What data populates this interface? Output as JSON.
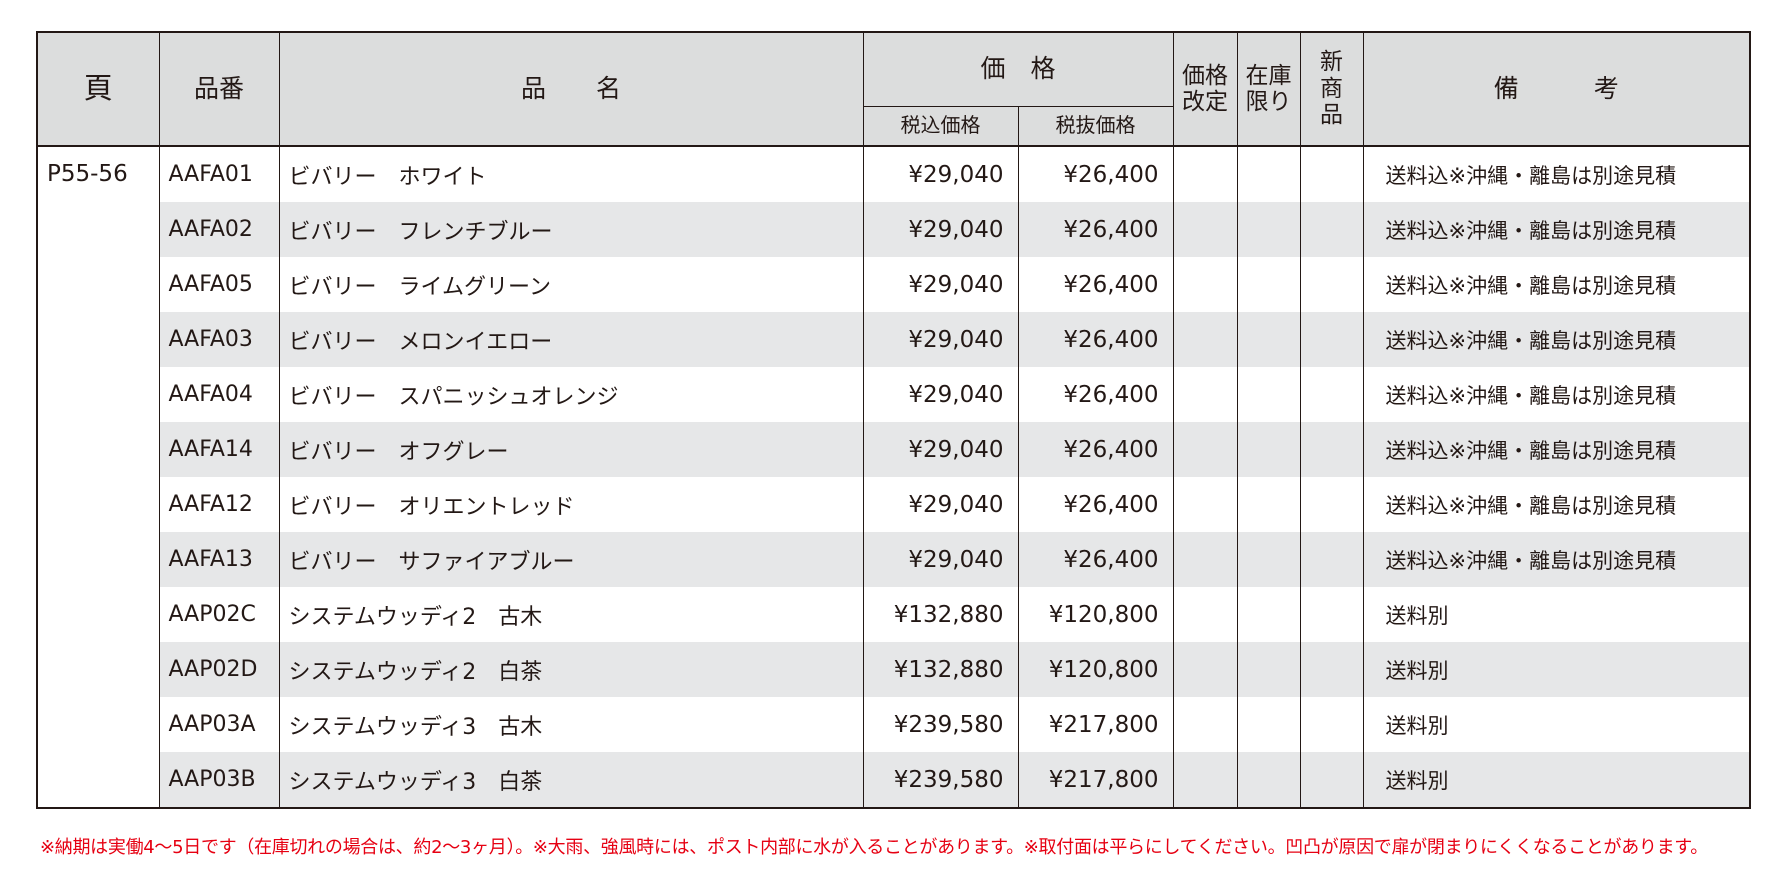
{
  "headers": {
    "page": "頁",
    "code": "品番",
    "name": "品　　名",
    "price": "価　格",
    "price_tax_in": "税込価格",
    "price_tax_out": "税抜価格",
    "revised": "価格改定",
    "revised_l1": "価格",
    "revised_l2": "改定",
    "stock_only": "在庫限り",
    "stock_l1": "在庫",
    "stock_l2": "限り",
    "new_product": "新商品",
    "new_l1": "新",
    "new_l2": "商",
    "new_l3": "品",
    "remarks": "備　　　考"
  },
  "page_ref": "P55-56",
  "rows": [
    {
      "code": "AAFA01",
      "name": "ビバリー　ホワイト",
      "price_in": "¥29,040",
      "price_out": "¥26,400",
      "note": "送料込※沖縄・離島は別途見積"
    },
    {
      "code": "AAFA02",
      "name": "ビバリー　フレンチブルー",
      "price_in": "¥29,040",
      "price_out": "¥26,400",
      "note": "送料込※沖縄・離島は別途見積"
    },
    {
      "code": "AAFA05",
      "name": "ビバリー　ライムグリーン",
      "price_in": "¥29,040",
      "price_out": "¥26,400",
      "note": "送料込※沖縄・離島は別途見積"
    },
    {
      "code": "AAFA03",
      "name": "ビバリー　メロンイエロー",
      "price_in": "¥29,040",
      "price_out": "¥26,400",
      "note": "送料込※沖縄・離島は別途見積"
    },
    {
      "code": "AAFA04",
      "name": "ビバリー　スパニッシュオレンジ",
      "price_in": "¥29,040",
      "price_out": "¥26,400",
      "note": "送料込※沖縄・離島は別途見積"
    },
    {
      "code": "AAFA14",
      "name": "ビバリー　オフグレー",
      "price_in": "¥29,040",
      "price_out": "¥26,400",
      "note": "送料込※沖縄・離島は別途見積"
    },
    {
      "code": "AAFA12",
      "name": "ビバリー　オリエントレッド",
      "price_in": "¥29,040",
      "price_out": "¥26,400",
      "note": "送料込※沖縄・離島は別途見積"
    },
    {
      "code": "AAFA13",
      "name": "ビバリー　サファイアブルー",
      "price_in": "¥29,040",
      "price_out": "¥26,400",
      "note": "送料込※沖縄・離島は別途見積"
    },
    {
      "code": "AAP02C",
      "name": "システムウッディ2　古木",
      "price_in": "¥132,880",
      "price_out": "¥120,800",
      "note": "送料別"
    },
    {
      "code": "AAP02D",
      "name": "システムウッディ2　白茶",
      "price_in": "¥132,880",
      "price_out": "¥120,800",
      "note": "送料別"
    },
    {
      "code": "AAP03A",
      "name": "システムウッディ3　古木",
      "price_in": "¥239,580",
      "price_out": "¥217,800",
      "note": "送料別"
    },
    {
      "code": "AAP03B",
      "name": "システムウッディ3　白茶",
      "price_in": "¥239,580",
      "price_out": "¥217,800",
      "note": "送料別"
    }
  ],
  "footnote": "※納期は実働4～5日です（在庫切れの場合は、約2～3ヶ月）。※大雨、強風時には、ポスト内部に水が入ることがあります。※取付面は平らにしてください。凹凸が原因で扉が閉まりにくくなることがあります。",
  "colors": {
    "header_bg": "#dcdddd",
    "stripe_bg": "#e6e7e8",
    "border": "#231815",
    "footnote_red": "#e60012"
  }
}
